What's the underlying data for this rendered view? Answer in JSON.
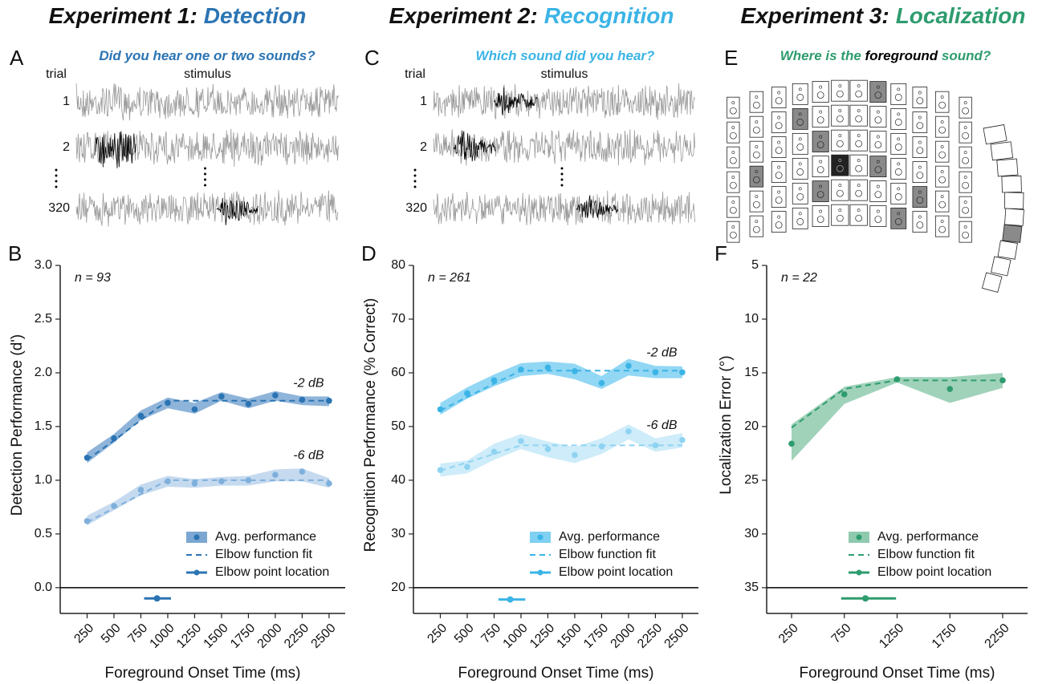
{
  "panels": [
    {
      "letter": "A",
      "title": "Experiment 1:",
      "title_accent": "Detection",
      "color": "#2b74b3",
      "question": [
        "Did you hear one or two sounds?"
      ],
      "trial_header": "trial",
      "stimulus_header": "stimulus",
      "trials": [
        "1",
        "2",
        "320"
      ]
    },
    {
      "letter": "C",
      "title": "Experiment 2:",
      "title_accent": "Recognition",
      "color": "#3bb4e6",
      "question": [
        "Which sound did you hear?"
      ],
      "trial_header": "trial",
      "stimulus_header": "stimulus",
      "trials": [
        "1",
        "2",
        "320"
      ]
    },
    {
      "letter": "E",
      "title": "Experiment 3:",
      "title_accent": "Localization",
      "color": "#2e9c6e",
      "question": [
        "Where is the ",
        "foreground",
        " sound?"
      ]
    }
  ],
  "chart_data": [
    {
      "type": "line",
      "panel": "B",
      "annotation": "n = 93",
      "xlabel": "Foreground Onset Time (ms)",
      "ylabel": "Detection Performance (d')",
      "x": [
        250,
        500,
        750,
        1000,
        1250,
        1500,
        1750,
        2000,
        2250,
        2500
      ],
      "xlim": [
        0,
        2650
      ],
      "xticks": [
        250,
        500,
        750,
        1000,
        1250,
        1500,
        1750,
        2000,
        2250,
        2500
      ],
      "ylim": [
        -0.24,
        3.0
      ],
      "yticks": [
        {
          "value": 0,
          "label": "0.0"
        },
        0.5,
        {
          "value": 1,
          "label": "1.0"
        },
        1.5,
        {
          "value": 2,
          "label": "2.0"
        },
        2.5,
        {
          "value": 3,
          "label": "3.0"
        }
      ],
      "hline": 0,
      "series": [
        {
          "name": "-2 dB",
          "color": "#2b74b3",
          "band_color": "#7ba7d2",
          "values": [
            1.21,
            1.39,
            1.6,
            1.72,
            1.66,
            1.78,
            1.71,
            1.79,
            1.75,
            1.74
          ],
          "lower": [
            1.16,
            1.35,
            1.56,
            1.67,
            1.62,
            1.74,
            1.67,
            1.74,
            1.7,
            1.69
          ],
          "upper": [
            1.26,
            1.43,
            1.65,
            1.77,
            1.72,
            1.82,
            1.76,
            1.83,
            1.78,
            1.78
          ],
          "fit": [
            1.19,
            1.37,
            1.56,
            1.74,
            1.74,
            1.74,
            1.74,
            1.74,
            1.74,
            1.74
          ]
        },
        {
          "name": "-6 dB",
          "color": "#7fb0dc",
          "band_color": "#bcd4ec",
          "values": [
            0.62,
            0.76,
            0.91,
            0.99,
            0.97,
            0.99,
            1.0,
            1.05,
            1.08,
            0.97
          ],
          "lower": [
            0.58,
            0.72,
            0.86,
            0.94,
            0.93,
            0.95,
            0.95,
            0.99,
            0.99,
            0.93
          ],
          "upper": [
            0.67,
            0.8,
            0.96,
            1.04,
            1.01,
            1.03,
            1.04,
            1.1,
            1.11,
            1.02
          ],
          "fit": [
            0.61,
            0.74,
            0.87,
            1.0,
            1.0,
            1.0,
            1.0,
            1.0,
            1.0,
            1.0
          ]
        }
      ],
      "legend": [
        "Avg. performance",
        "Elbow function fit",
        "Elbow point location"
      ],
      "elbow": {
        "x": 900,
        "y": -0.1,
        "xmin": 780,
        "xmax": 1030
      }
    },
    {
      "type": "line",
      "panel": "D",
      "annotation": "n = 261",
      "xlabel": "Foreground Onset Time (ms)",
      "ylabel": "Recognition Performance (% Correct)",
      "x": [
        250,
        500,
        750,
        1000,
        1250,
        1500,
        1750,
        2000,
        2250,
        2500
      ],
      "xlim": [
        0,
        2650
      ],
      "xticks": [
        250,
        500,
        750,
        1000,
        1250,
        1500,
        1750,
        2000,
        2250,
        2500
      ],
      "ylim": [
        15.2,
        80
      ],
      "yticks": [
        20,
        30,
        40,
        50,
        60,
        70,
        80
      ],
      "hline": 20,
      "series": [
        {
          "name": "-2 dB",
          "color": "#3bb4e6",
          "band_color": "#7fd0f2",
          "values": [
            53.2,
            56.2,
            58.6,
            60.6,
            61.0,
            60.3,
            58.1,
            61.3,
            60.1,
            60.1
          ],
          "lower": [
            52.2,
            55.2,
            57.5,
            59.4,
            59.8,
            58.8,
            57.0,
            59.5,
            59.0,
            59.0
          ],
          "upper": [
            54.4,
            57.3,
            59.7,
            61.8,
            62.1,
            61.7,
            59.4,
            62.6,
            61.3,
            61.2
          ],
          "fit": [
            53.0,
            55.5,
            58.0,
            60.4,
            60.4,
            60.4,
            60.4,
            60.4,
            60.4,
            60.4
          ]
        },
        {
          "name": "-6 dB",
          "color": "#8fd3f2",
          "band_color": "#c5e9f8",
          "values": [
            41.9,
            42.5,
            45.3,
            47.3,
            45.8,
            44.7,
            46.3,
            49.1,
            46.5,
            47.5
          ],
          "lower": [
            40.7,
            41.3,
            43.8,
            45.8,
            44.3,
            43.2,
            44.9,
            47.6,
            45.3,
            46.1
          ],
          "upper": [
            43.1,
            43.7,
            46.8,
            48.6,
            47.2,
            46.2,
            47.8,
            50.4,
            47.8,
            48.8
          ],
          "fit": [
            41.8,
            43.3,
            44.9,
            46.5,
            46.5,
            46.5,
            46.5,
            46.5,
            46.5,
            46.5
          ]
        }
      ],
      "legend": [
        "Avg. performance",
        "Elbow function fit",
        "Elbow point location"
      ],
      "elbow": {
        "x": 900,
        "y": 17.8,
        "xmin": 790,
        "xmax": 1040
      }
    },
    {
      "type": "line",
      "panel": "F",
      "annotation": "n = 22",
      "xlabel": "Foreground Onset Time (ms)",
      "ylabel": "Localization Error (°)",
      "x": [
        250,
        750,
        1250,
        1750,
        2250
      ],
      "xlim": [
        14,
        2486
      ],
      "xticks": [
        250,
        750,
        1250,
        1750,
        2250
      ],
      "ylim": [
        37.4,
        5
      ],
      "yticks": [
        5,
        10,
        15,
        20,
        25,
        30,
        35
      ],
      "hline": 35,
      "series": [
        {
          "color": "#2e9c6e",
          "band_color": "#8fcaae",
          "values": [
            21.6,
            17.0,
            15.6,
            16.5,
            15.7
          ],
          "lower": [
            19.8,
            16.3,
            15.4,
            15.4,
            15.0
          ],
          "upper": [
            23.2,
            17.9,
            15.9,
            17.8,
            16.4
          ],
          "fit": [
            20.1,
            16.5,
            15.7,
            15.7,
            15.7
          ]
        }
      ],
      "legend": [
        "Avg. performance",
        "Elbow function fit",
        "Elbow point location"
      ],
      "elbow": {
        "x": 950,
        "y": 36,
        "xmin": 720,
        "xmax": 1240
      }
    }
  ]
}
